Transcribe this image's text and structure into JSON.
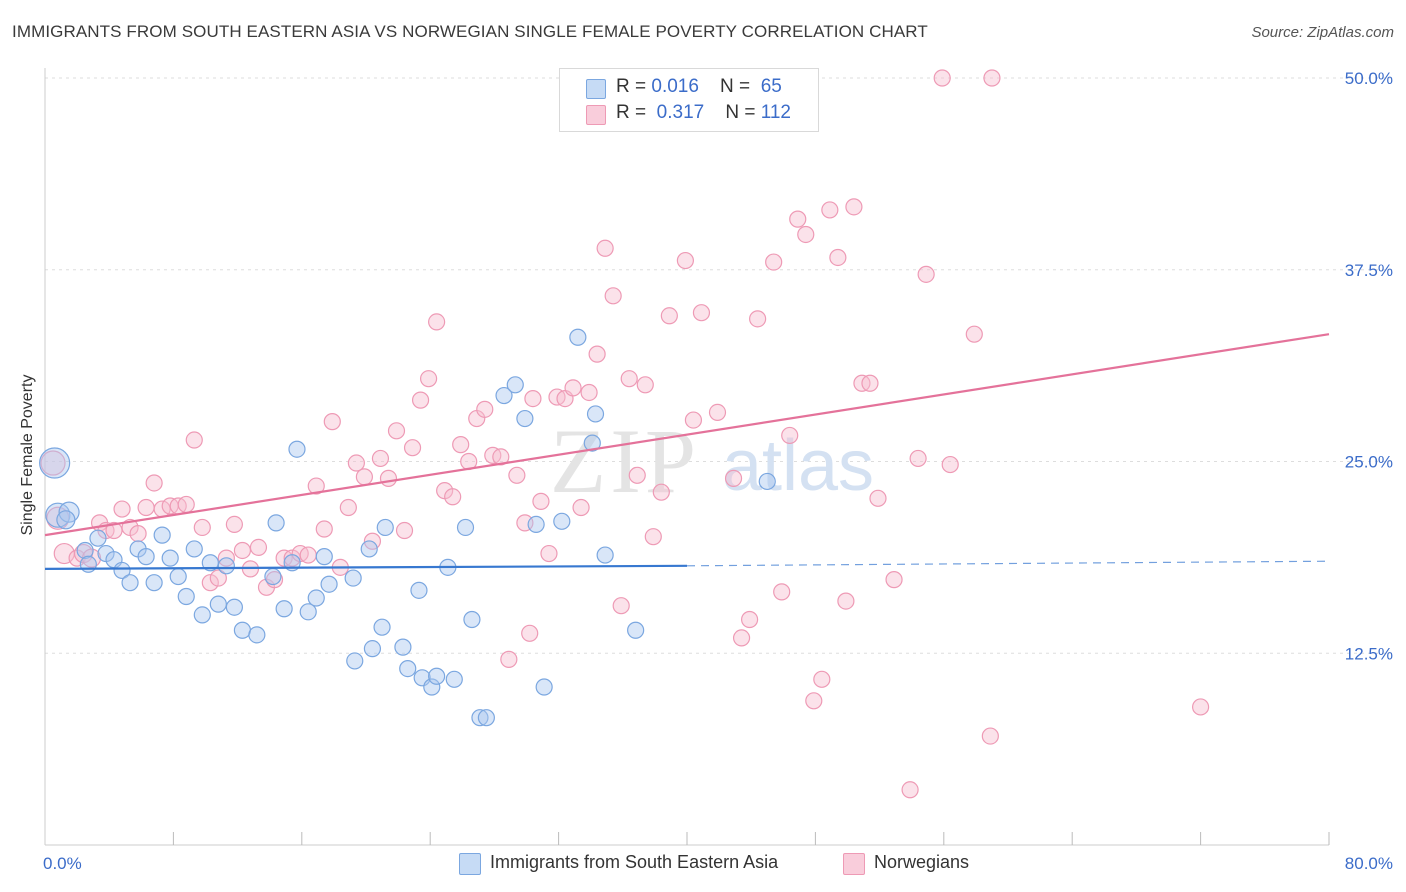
{
  "title": "IMMIGRANTS FROM SOUTH EASTERN ASIA VS NORWEGIAN SINGLE FEMALE POVERTY CORRELATION CHART",
  "source": "Source: ZipAtlas.com",
  "watermark": {
    "zip": "ZIP",
    "atlas": "atlas"
  },
  "legend": {
    "rows": [
      {
        "r_label": "R = ",
        "r_value": "0.016",
        "n_label": "N = ",
        "n_value": "65"
      },
      {
        "r_label": "R = ",
        "r_value": "0.317",
        "n_label": "N = ",
        "n_value": "112"
      }
    ]
  },
  "bottom_legend": [
    "Immigrants from South Eastern Asia",
    "Norwegians"
  ],
  "colors": {
    "blue_fill": "#aac8ef",
    "blue_stroke": "#7ba7e0",
    "blue_line": "#3778d0",
    "pink_fill": "#f7bfd0",
    "pink_stroke": "#ee9ab5",
    "pink_line": "#e4729a",
    "tick_text": "#3b6cc9",
    "grid": "#dddddd"
  },
  "chart_data": {
    "type": "scatter",
    "title": "IMMIGRANTS FROM SOUTH EASTERN ASIA VS NORWEGIAN SINGLE FEMALE POVERTY CORRELATION CHART",
    "xlabel": "",
    "ylabel": "Single Female Poverty",
    "xlim": [
      0,
      80
    ],
    "ylim": [
      0,
      50
    ],
    "x_tick_labels": [
      "0.0%",
      "80.0%"
    ],
    "y_ticks": [
      12.5,
      25.0,
      37.5,
      50.0
    ],
    "y_tick_labels": [
      "12.5%",
      "25.0%",
      "37.5%",
      "50.0%"
    ],
    "grid": true,
    "legend_position": "top-center",
    "series": [
      {
        "name": "Immigrants from South Eastern Asia",
        "color": "#aac8ef",
        "trend": {
          "x": [
            0,
            40
          ],
          "y": [
            18.0,
            18.2
          ],
          "dashed_to": 80,
          "dashed_y": 18.5
        },
        "points": [
          [
            0.6,
            24.9,
            15
          ],
          [
            0.8,
            21.5,
            12
          ],
          [
            1.5,
            21.7,
            10
          ],
          [
            1.3,
            21.2,
            9
          ],
          [
            2.5,
            19.2,
            8
          ],
          [
            2.7,
            18.3,
            8
          ],
          [
            3.3,
            20.0,
            8
          ],
          [
            3.8,
            19.0,
            8
          ],
          [
            4.3,
            18.6,
            8
          ],
          [
            4.8,
            17.9,
            8
          ],
          [
            5.3,
            17.1,
            8
          ],
          [
            5.8,
            19.3,
            8
          ],
          [
            6.3,
            18.8,
            8
          ],
          [
            6.8,
            17.1,
            8
          ],
          [
            7.3,
            20.2,
            8
          ],
          [
            7.8,
            18.7,
            8
          ],
          [
            8.3,
            17.5,
            8
          ],
          [
            8.8,
            16.2,
            8
          ],
          [
            9.3,
            19.3,
            8
          ],
          [
            9.8,
            15.0,
            8
          ],
          [
            10.3,
            18.4,
            8
          ],
          [
            10.8,
            15.7,
            8
          ],
          [
            11.3,
            18.2,
            8
          ],
          [
            11.8,
            15.5,
            8
          ],
          [
            12.3,
            14.0,
            8
          ],
          [
            13.2,
            13.7,
            8
          ],
          [
            14.2,
            17.5,
            8
          ],
          [
            14.4,
            21.0,
            8
          ],
          [
            14.9,
            15.4,
            8
          ],
          [
            15.4,
            18.4,
            8
          ],
          [
            15.7,
            25.8,
            8
          ],
          [
            16.4,
            15.2,
            8
          ],
          [
            16.9,
            16.1,
            8
          ],
          [
            17.4,
            18.8,
            8
          ],
          [
            17.7,
            17.0,
            8
          ],
          [
            19.2,
            17.4,
            8
          ],
          [
            19.3,
            12.0,
            8
          ],
          [
            20.2,
            19.3,
            8
          ],
          [
            20.4,
            12.8,
            8
          ],
          [
            21.0,
            14.2,
            8
          ],
          [
            21.2,
            20.7,
            8
          ],
          [
            22.3,
            12.9,
            8
          ],
          [
            22.6,
            11.5,
            8
          ],
          [
            23.3,
            16.6,
            8
          ],
          [
            23.5,
            10.9,
            8
          ],
          [
            24.1,
            10.3,
            8
          ],
          [
            24.4,
            11.0,
            8
          ],
          [
            25.1,
            18.1,
            8
          ],
          [
            25.5,
            10.8,
            8
          ],
          [
            26.2,
            20.7,
            8
          ],
          [
            26.6,
            14.7,
            8
          ],
          [
            27.1,
            8.3,
            8
          ],
          [
            27.5,
            8.3,
            8
          ],
          [
            28.6,
            29.3,
            8
          ],
          [
            29.3,
            30.0,
            8
          ],
          [
            29.9,
            27.8,
            8
          ],
          [
            30.6,
            20.9,
            8
          ],
          [
            31.1,
            10.3,
            8
          ],
          [
            32.2,
            21.1,
            8
          ],
          [
            33.2,
            33.1,
            8
          ],
          [
            34.1,
            26.2,
            8
          ],
          [
            34.3,
            28.1,
            8
          ],
          [
            34.9,
            18.9,
            8
          ],
          [
            36.8,
            14.0,
            8
          ],
          [
            45.0,
            23.7,
            8
          ]
        ]
      },
      {
        "name": "Norwegians",
        "color": "#f7bfd0",
        "trend": {
          "x": [
            0,
            80
          ],
          "y": [
            20.2,
            33.3
          ]
        },
        "points": [
          [
            0.5,
            24.9,
            12
          ],
          [
            0.8,
            21.3,
            11
          ],
          [
            1.2,
            19.0,
            10
          ],
          [
            2.0,
            18.7,
            8
          ],
          [
            2.4,
            19.0,
            9
          ],
          [
            2.9,
            18.7,
            9
          ],
          [
            3.4,
            21.0,
            8
          ],
          [
            3.8,
            20.5,
            8
          ],
          [
            4.3,
            20.5,
            8
          ],
          [
            4.8,
            21.9,
            8
          ],
          [
            5.3,
            20.7,
            8
          ],
          [
            5.8,
            20.3,
            8
          ],
          [
            6.3,
            22.0,
            8
          ],
          [
            6.8,
            23.6,
            8
          ],
          [
            7.3,
            21.9,
            8
          ],
          [
            7.8,
            22.1,
            8
          ],
          [
            8.3,
            22.1,
            8
          ],
          [
            8.8,
            22.2,
            8
          ],
          [
            9.3,
            26.4,
            8
          ],
          [
            9.8,
            20.7,
            8
          ],
          [
            10.3,
            17.1,
            8
          ],
          [
            10.8,
            17.4,
            8
          ],
          [
            11.3,
            18.7,
            8
          ],
          [
            11.8,
            20.9,
            8
          ],
          [
            12.3,
            19.2,
            8
          ],
          [
            12.8,
            18.0,
            8
          ],
          [
            13.3,
            19.4,
            8
          ],
          [
            13.8,
            16.8,
            8
          ],
          [
            14.3,
            17.3,
            8
          ],
          [
            14.9,
            18.7,
            8
          ],
          [
            15.4,
            18.7,
            8
          ],
          [
            15.9,
            19.0,
            8
          ],
          [
            16.4,
            18.9,
            8
          ],
          [
            16.9,
            23.4,
            8
          ],
          [
            17.4,
            20.6,
            8
          ],
          [
            17.9,
            27.6,
            8
          ],
          [
            18.4,
            18.1,
            8
          ],
          [
            18.9,
            22.0,
            8
          ],
          [
            19.4,
            24.9,
            8
          ],
          [
            19.9,
            24.0,
            8
          ],
          [
            20.4,
            19.8,
            8
          ],
          [
            20.9,
            25.2,
            8
          ],
          [
            21.4,
            23.9,
            8
          ],
          [
            21.9,
            27.0,
            8
          ],
          [
            22.4,
            20.5,
            8
          ],
          [
            22.9,
            25.9,
            8
          ],
          [
            23.4,
            29.0,
            8
          ],
          [
            23.9,
            30.4,
            8
          ],
          [
            24.4,
            34.1,
            8
          ],
          [
            24.9,
            23.1,
            8
          ],
          [
            25.4,
            22.7,
            8
          ],
          [
            25.9,
            26.1,
            8
          ],
          [
            26.4,
            25.0,
            8
          ],
          [
            26.9,
            27.8,
            8
          ],
          [
            27.4,
            28.4,
            8
          ],
          [
            27.9,
            25.4,
            8
          ],
          [
            28.4,
            25.3,
            8
          ],
          [
            28.9,
            12.1,
            8
          ],
          [
            29.4,
            24.1,
            8
          ],
          [
            29.9,
            21.0,
            8
          ],
          [
            30.4,
            29.1,
            8
          ],
          [
            30.9,
            22.4,
            8
          ],
          [
            31.4,
            19.0,
            8
          ],
          [
            31.9,
            29.2,
            8
          ],
          [
            32.4,
            29.1,
            8
          ],
          [
            32.9,
            29.8,
            8
          ],
          [
            33.4,
            22.0,
            8
          ],
          [
            33.9,
            29.5,
            8
          ],
          [
            34.4,
            32.0,
            8
          ],
          [
            34.9,
            38.9,
            8
          ],
          [
            35.4,
            35.8,
            8
          ],
          [
            35.9,
            15.6,
            8
          ],
          [
            36.4,
            30.4,
            8
          ],
          [
            36.9,
            24.1,
            8
          ],
          [
            37.4,
            30.0,
            8
          ],
          [
            37.9,
            20.1,
            8
          ],
          [
            38.4,
            23.0,
            8
          ],
          [
            38.9,
            34.5,
            8
          ],
          [
            39.4,
            47.2,
            8
          ],
          [
            39.9,
            38.1,
            8
          ],
          [
            40.4,
            27.7,
            8
          ],
          [
            40.9,
            34.7,
            8
          ],
          [
            41.9,
            28.2,
            8
          ],
          [
            42.9,
            23.9,
            8
          ],
          [
            43.4,
            13.5,
            8
          ],
          [
            43.9,
            14.7,
            8
          ],
          [
            44.4,
            34.3,
            8
          ],
          [
            45.4,
            38.0,
            8
          ],
          [
            45.9,
            16.5,
            8
          ],
          [
            46.4,
            26.7,
            8
          ],
          [
            46.9,
            40.8,
            8
          ],
          [
            47.4,
            39.8,
            8
          ],
          [
            47.9,
            9.4,
            8
          ],
          [
            48.4,
            10.8,
            8
          ],
          [
            48.9,
            41.4,
            8
          ],
          [
            49.4,
            38.3,
            8
          ],
          [
            49.9,
            15.9,
            8
          ],
          [
            50.4,
            41.6,
            8
          ],
          [
            50.9,
            30.1,
            8
          ],
          [
            51.4,
            30.1,
            8
          ],
          [
            51.9,
            22.6,
            8
          ],
          [
            52.9,
            17.3,
            8
          ],
          [
            53.9,
            3.6,
            8
          ],
          [
            54.4,
            25.2,
            8
          ],
          [
            54.9,
            37.2,
            8
          ],
          [
            55.9,
            50.0,
            8
          ],
          [
            56.4,
            24.8,
            8
          ],
          [
            57.9,
            33.3,
            8
          ],
          [
            58.9,
            7.1,
            8
          ],
          [
            59.0,
            50.0,
            8
          ],
          [
            72.0,
            9.0,
            8
          ],
          [
            30.2,
            13.8,
            8
          ]
        ]
      }
    ]
  }
}
